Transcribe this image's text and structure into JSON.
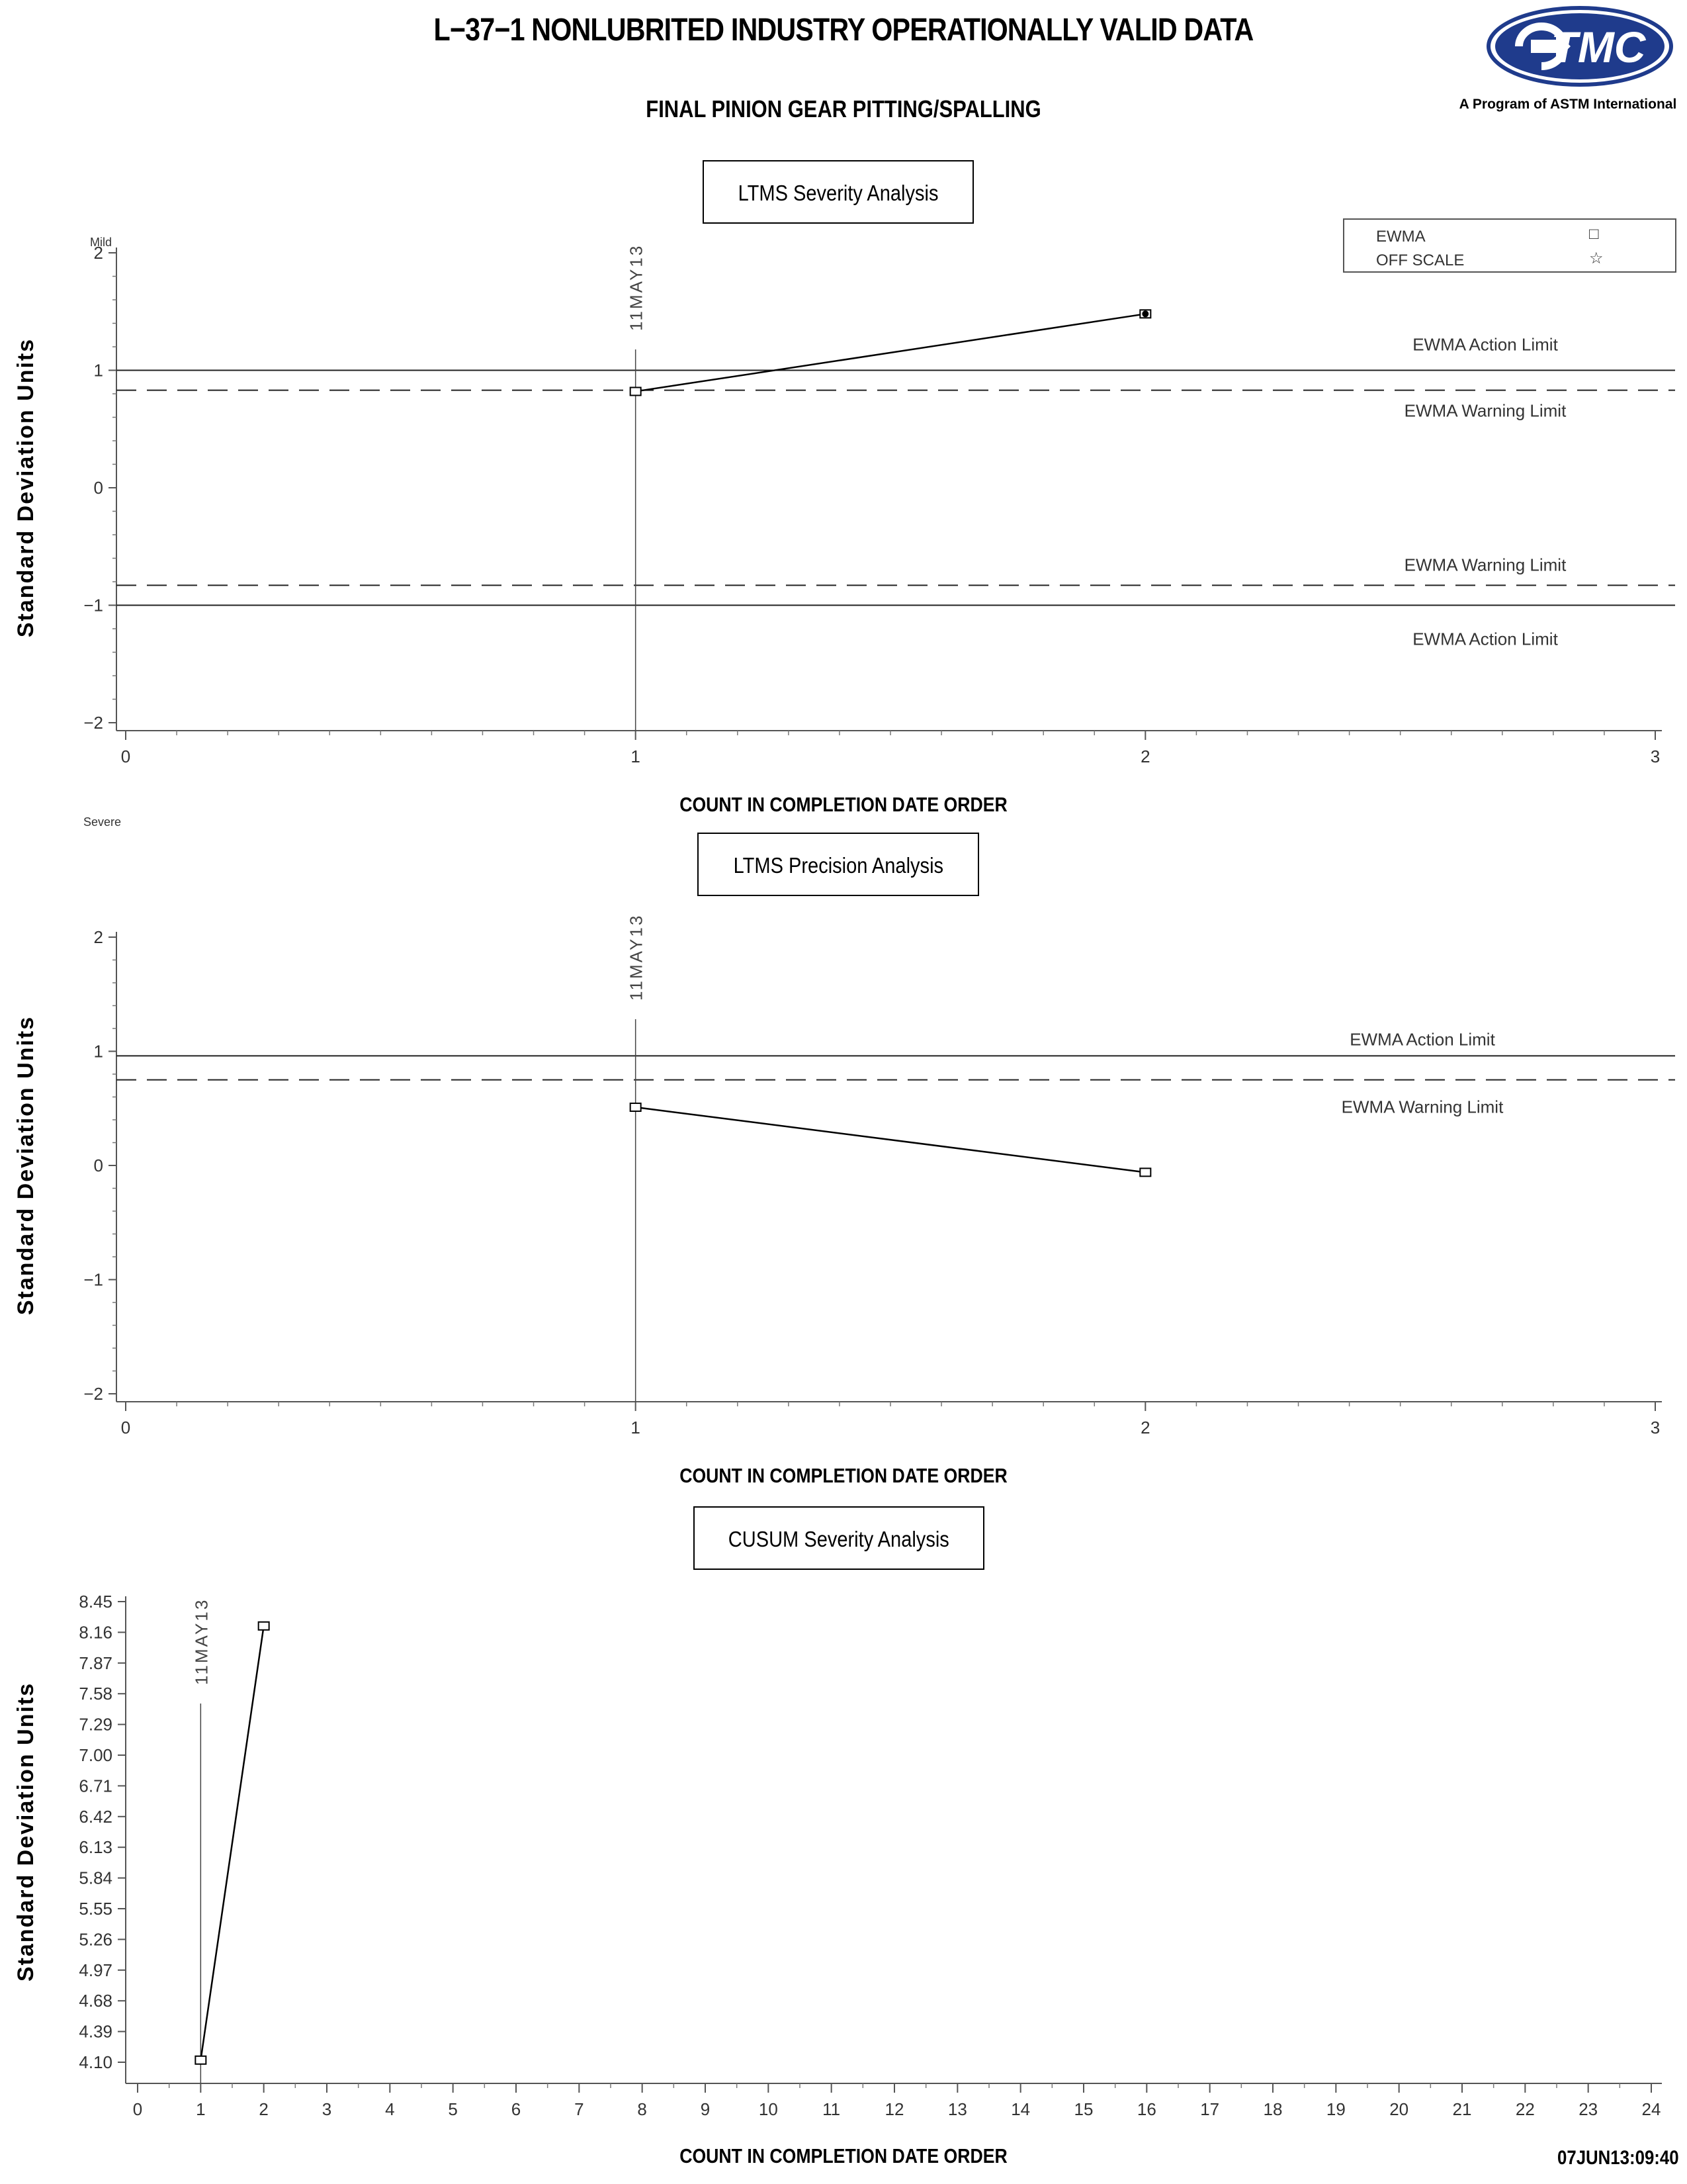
{
  "header": {
    "title": "L−37−1 NONLUBRITED INDUSTRY OPERATIONALLY VALID DATA",
    "subtitle": "FINAL PINION GEAR PITTING/SPALLING",
    "logo_text": "TMC",
    "logo_caption": "A Program of ASTM International"
  },
  "legend": {
    "items": [
      {
        "label": "EWMA",
        "symbol": "□"
      },
      {
        "label": "OFF SCALE",
        "symbol": "☆"
      }
    ]
  },
  "labels": {
    "mild": "Mild",
    "severe": "Severe",
    "timestamp": "07JUN13:09:40"
  },
  "chart_data": [
    {
      "type": "line",
      "title": "LTMS Severity Analysis",
      "xlabel": "COUNT IN COMPLETION DATE ORDER",
      "ylabel": "Standard Deviation Units",
      "xlim": [
        0,
        3
      ],
      "ylim": [
        -2,
        2
      ],
      "xticks": [
        0,
        1,
        2,
        3
      ],
      "yticks": [
        2,
        1,
        0,
        -1,
        -2
      ],
      "yticklabels": [
        "2",
        "1",
        "0",
        "−1",
        "−2"
      ],
      "series": [
        {
          "x": [
            1,
            2
          ],
          "y": [
            0.82,
            1.48
          ]
        }
      ],
      "reference_lines": [
        {
          "y": 1.0,
          "label": "EWMA Action Limit",
          "style": "solid"
        },
        {
          "y": 0.83,
          "label": "EWMA Warning Limit",
          "style": "dashed"
        },
        {
          "y": -0.83,
          "label": "EWMA Warning Limit",
          "style": "dashed"
        },
        {
          "y": -1.0,
          "label": "EWMA Action Limit",
          "style": "solid"
        }
      ],
      "annotations": [
        {
          "x": 1,
          "label": "11MAY13"
        }
      ]
    },
    {
      "type": "line",
      "title": "LTMS Precision Analysis",
      "xlabel": "COUNT IN COMPLETION DATE ORDER",
      "ylabel": "Standard Deviation Units",
      "xlim": [
        0,
        3
      ],
      "ylim": [
        -2,
        2
      ],
      "xticks": [
        0,
        1,
        2,
        3
      ],
      "yticks": [
        2,
        1,
        0,
        -1,
        -2
      ],
      "yticklabels": [
        "2",
        "1",
        "0",
        "−1",
        "−2"
      ],
      "series": [
        {
          "x": [
            1,
            2
          ],
          "y": [
            0.51,
            -0.06
          ]
        }
      ],
      "reference_lines": [
        {
          "y": 0.96,
          "label": "EWMA Action Limit",
          "style": "solid"
        },
        {
          "y": 0.75,
          "label": "EWMA Warning Limit",
          "style": "dashed"
        }
      ],
      "annotations": [
        {
          "x": 1,
          "label": "11MAY13"
        }
      ]
    },
    {
      "type": "line",
      "title": "CUSUM Severity Analysis",
      "xlabel": "COUNT IN COMPLETION DATE ORDER",
      "ylabel": "Standard Deviation Units",
      "xlim": [
        0,
        24
      ],
      "ylim": [
        4.1,
        8.45
      ],
      "xticks": [
        0,
        1,
        2,
        3,
        4,
        5,
        6,
        7,
        8,
        9,
        10,
        11,
        12,
        13,
        14,
        15,
        16,
        17,
        18,
        19,
        20,
        21,
        22,
        23,
        24
      ],
      "yticks": [
        8.45,
        8.16,
        7.87,
        7.58,
        7.29,
        7.0,
        6.71,
        6.42,
        6.13,
        5.84,
        5.55,
        5.26,
        4.97,
        4.68,
        4.39,
        4.1
      ],
      "yticklabels": [
        "8.45",
        "8.16",
        "7.87",
        "7.58",
        "7.29",
        "7.00",
        "6.71",
        "6.42",
        "6.13",
        "5.84",
        "5.55",
        "5.26",
        "4.97",
        "4.68",
        "4.39",
        "4.10"
      ],
      "series": [
        {
          "x": [
            1,
            2
          ],
          "y": [
            4.12,
            8.22
          ]
        }
      ],
      "reference_lines": [],
      "annotations": [
        {
          "x": 1,
          "label": "11MAY13"
        }
      ]
    }
  ]
}
